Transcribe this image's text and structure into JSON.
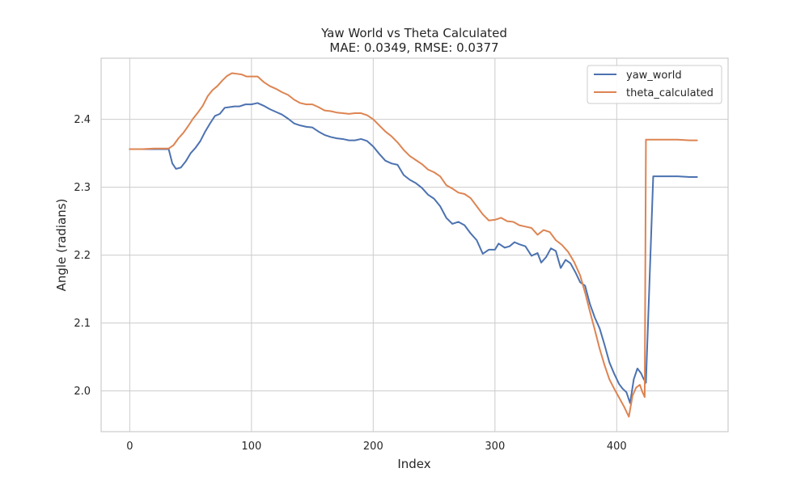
{
  "chart_data": {
    "type": "line",
    "title": "Yaw World vs Theta Calculated",
    "subtitle": "MAE: 0.0349, RMSE: 0.0377",
    "xlabel": "Index",
    "ylabel": "Angle (radians)",
    "xlim": [
      -23.5,
      491.5
    ],
    "ylim": [
      1.94,
      2.49
    ],
    "xticks": [
      0,
      100,
      200,
      300,
      400
    ],
    "xtick_labels": [
      "0",
      "100",
      "200",
      "300",
      "400"
    ],
    "yticks": [
      2.0,
      2.1,
      2.2,
      2.3,
      2.4
    ],
    "ytick_labels": [
      "2.0",
      "2.1",
      "2.2",
      "2.3",
      "2.4"
    ],
    "grid": true,
    "legend_position": "top-right",
    "series": [
      {
        "name": "yaw_world",
        "color": "#4c72b0",
        "x": [
          0,
          10,
          20,
          32,
          35,
          38,
          42,
          46,
          50,
          54,
          58,
          62,
          66,
          70,
          74,
          78,
          82,
          86,
          90,
          95,
          100,
          105,
          110,
          115,
          120,
          125,
          130,
          135,
          140,
          145,
          150,
          155,
          160,
          165,
          170,
          175,
          180,
          185,
          190,
          195,
          200,
          205,
          210,
          215,
          220,
          225,
          230,
          235,
          240,
          245,
          250,
          255,
          260,
          265,
          270,
          275,
          280,
          285,
          290,
          295,
          300,
          303,
          308,
          312,
          316,
          320,
          325,
          330,
          335,
          338,
          342,
          346,
          350,
          354,
          358,
          362,
          366,
          370,
          374,
          378,
          382,
          386,
          390,
          394,
          398,
          402,
          405,
          408,
          411,
          414,
          417,
          420,
          422,
          424,
          430,
          440,
          450,
          460,
          466
        ],
        "y": [
          2.356,
          2.356,
          2.356,
          2.356,
          2.335,
          2.327,
          2.329,
          2.338,
          2.35,
          2.358,
          2.368,
          2.382,
          2.394,
          2.405,
          2.408,
          2.417,
          2.418,
          2.419,
          2.419,
          2.422,
          2.422,
          2.424,
          2.42,
          2.415,
          2.411,
          2.407,
          2.401,
          2.394,
          2.391,
          2.389,
          2.388,
          2.382,
          2.377,
          2.374,
          2.372,
          2.371,
          2.369,
          2.369,
          2.371,
          2.368,
          2.36,
          2.349,
          2.339,
          2.335,
          2.333,
          2.318,
          2.311,
          2.306,
          2.299,
          2.289,
          2.283,
          2.272,
          2.255,
          2.246,
          2.249,
          2.244,
          2.232,
          2.222,
          2.202,
          2.208,
          2.208,
          2.217,
          2.211,
          2.213,
          2.219,
          2.216,
          2.213,
          2.199,
          2.203,
          2.189,
          2.197,
          2.21,
          2.206,
          2.181,
          2.193,
          2.188,
          2.175,
          2.16,
          2.155,
          2.128,
          2.108,
          2.092,
          2.068,
          2.042,
          2.025,
          2.01,
          2.003,
          1.998,
          1.982,
          2.017,
          2.033,
          2.026,
          2.018,
          2.012,
          2.316,
          2.316,
          2.316,
          2.315,
          2.315
        ]
      },
      {
        "name": "theta_calculated",
        "color": "#dd8452",
        "x": [
          0,
          10,
          20,
          32,
          36,
          40,
          44,
          48,
          52,
          56,
          60,
          64,
          68,
          72,
          76,
          80,
          84,
          88,
          92,
          96,
          100,
          105,
          110,
          115,
          120,
          125,
          130,
          135,
          140,
          145,
          150,
          155,
          160,
          165,
          170,
          175,
          180,
          185,
          190,
          195,
          200,
          205,
          210,
          215,
          220,
          225,
          230,
          235,
          240,
          245,
          250,
          255,
          260,
          265,
          270,
          275,
          280,
          285,
          290,
          295,
          300,
          305,
          310,
          315,
          320,
          325,
          330,
          335,
          340,
          345,
          350,
          355,
          360,
          365,
          370,
          374,
          378,
          382,
          386,
          390,
          394,
          398,
          402,
          406,
          410,
          413,
          416,
          419,
          421,
          423,
          424,
          430,
          440,
          450,
          460,
          466
        ],
        "y": [
          2.356,
          2.356,
          2.357,
          2.357,
          2.362,
          2.372,
          2.38,
          2.39,
          2.401,
          2.41,
          2.42,
          2.434,
          2.443,
          2.449,
          2.457,
          2.464,
          2.468,
          2.467,
          2.466,
          2.463,
          2.463,
          2.463,
          2.455,
          2.449,
          2.445,
          2.44,
          2.436,
          2.429,
          2.424,
          2.422,
          2.422,
          2.418,
          2.413,
          2.412,
          2.41,
          2.409,
          2.408,
          2.409,
          2.409,
          2.406,
          2.4,
          2.391,
          2.382,
          2.375,
          2.366,
          2.355,
          2.346,
          2.34,
          2.334,
          2.326,
          2.322,
          2.316,
          2.303,
          2.298,
          2.292,
          2.29,
          2.284,
          2.272,
          2.26,
          2.251,
          2.252,
          2.255,
          2.25,
          2.249,
          2.244,
          2.242,
          2.24,
          2.23,
          2.237,
          2.234,
          2.222,
          2.215,
          2.205,
          2.19,
          2.17,
          2.145,
          2.117,
          2.09,
          2.062,
          2.038,
          2.017,
          2.003,
          1.99,
          1.977,
          1.962,
          1.993,
          2.005,
          2.009,
          1.999,
          1.991,
          2.37,
          2.37,
          2.37,
          2.37,
          2.369,
          2.369
        ]
      }
    ]
  }
}
